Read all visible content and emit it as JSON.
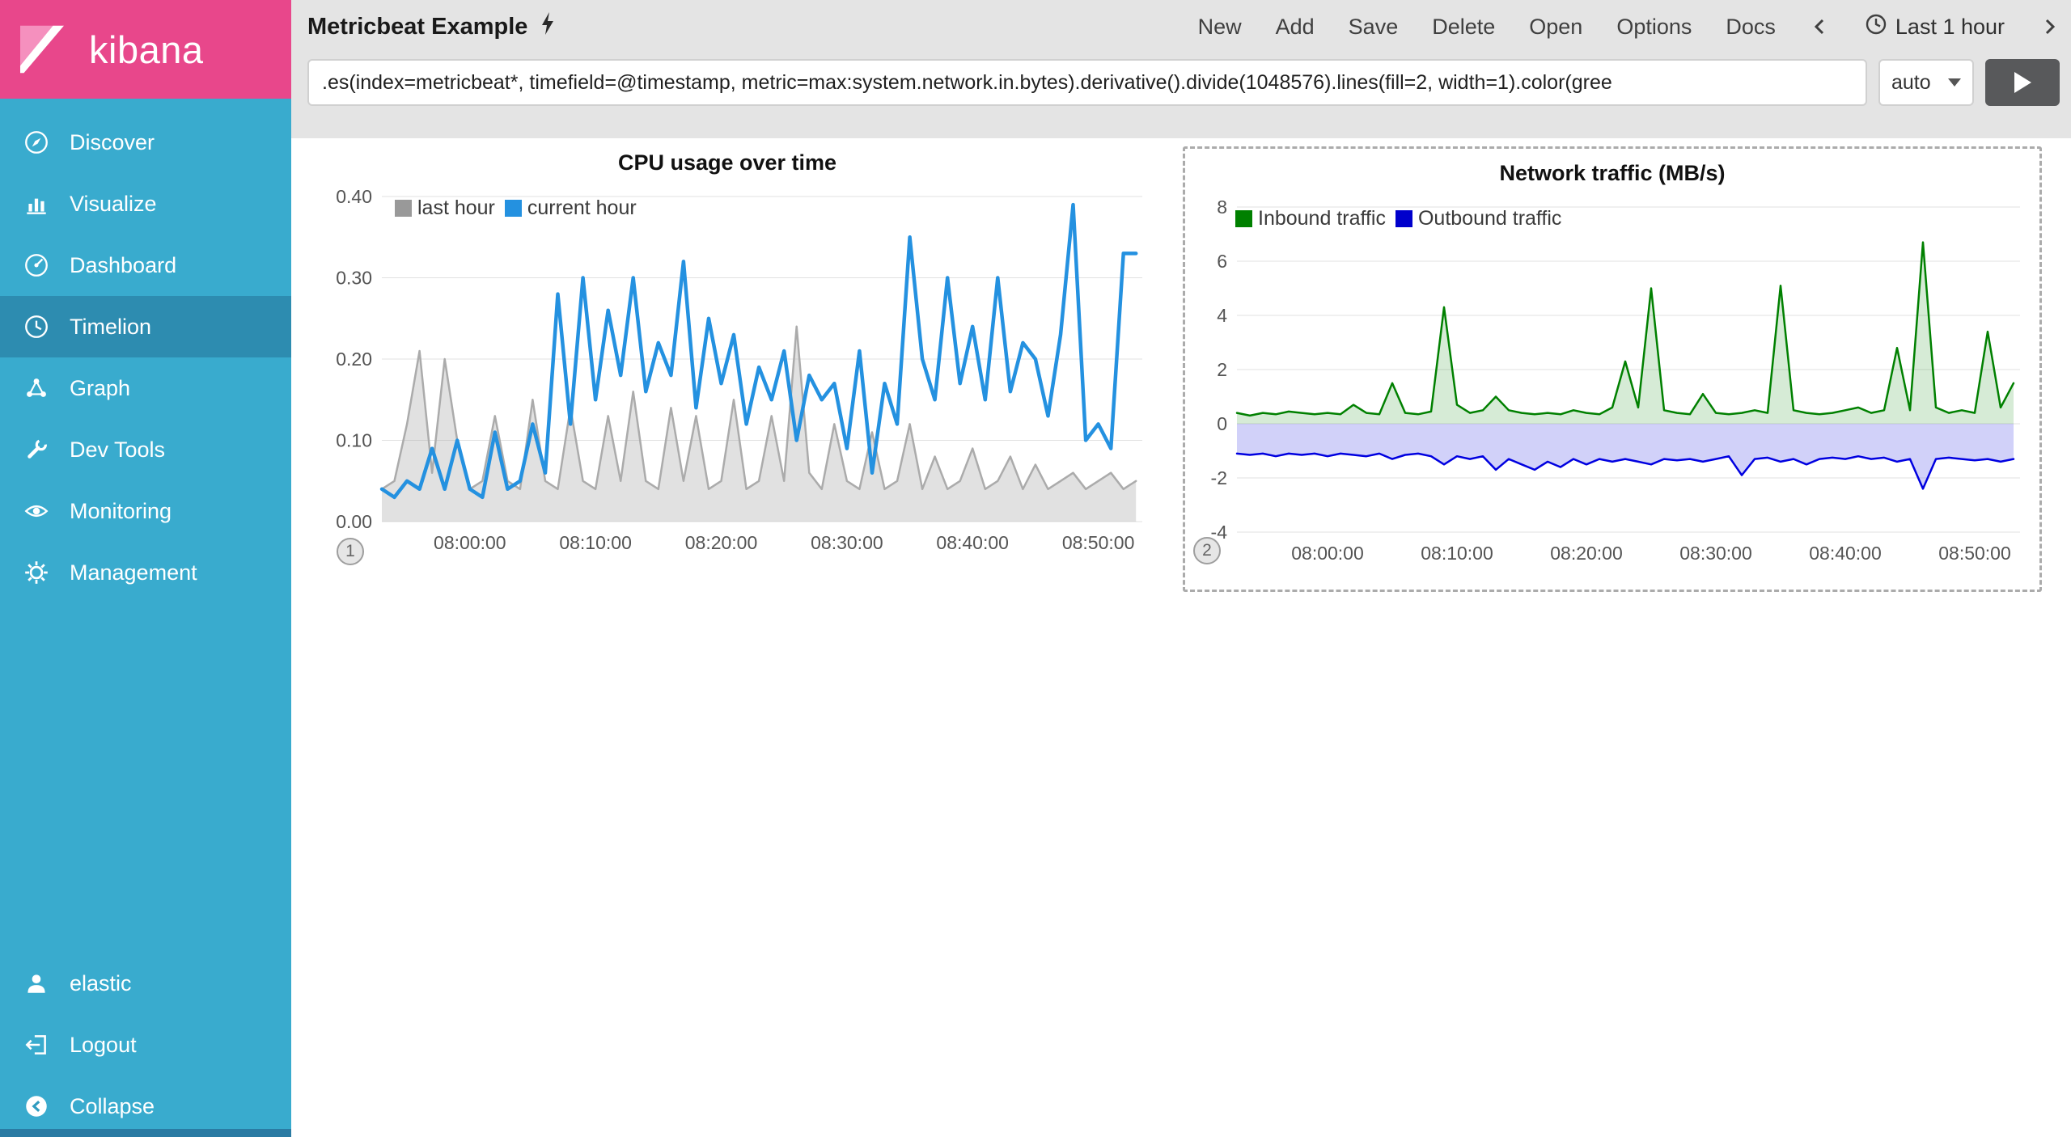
{
  "colors": {
    "sidebar": "#39ABCE",
    "sidebar_active": "#2D8CB0",
    "brand_pink": "#E8478B",
    "chrome_bg": "#E4E4E4",
    "cpu_current_blue": "#2491E0",
    "cpu_last_gray": "#999999",
    "net_inbound_green": "#008000",
    "net_outbound_blue": "#0000CC"
  },
  "sidebar": {
    "logo_text": "kibana",
    "items": [
      {
        "label": "Discover",
        "active": false
      },
      {
        "label": "Visualize",
        "active": false
      },
      {
        "label": "Dashboard",
        "active": false
      },
      {
        "label": "Timelion",
        "active": true
      },
      {
        "label": "Graph",
        "active": false
      },
      {
        "label": "Dev Tools",
        "active": false
      },
      {
        "label": "Monitoring",
        "active": false
      },
      {
        "label": "Management",
        "active": false
      }
    ],
    "footer_items": [
      {
        "label": "elastic"
      },
      {
        "label": "Logout"
      },
      {
        "label": "Collapse"
      }
    ]
  },
  "topbar": {
    "title": "Metricbeat Example",
    "actions": [
      "New",
      "Add",
      "Save",
      "Delete",
      "Open",
      "Options",
      "Docs"
    ],
    "time_range": "Last 1 hour"
  },
  "query": {
    "value": ".es(index=metricbeat*, timefield=@timestamp, metric=max:system.network.in.bytes).derivative().divide(1048576).lines(fill=2, width=1).color(gree",
    "interval": "auto"
  },
  "chart_data": [
    {
      "type": "area",
      "title": "CPU usage over time",
      "badge": "1",
      "legend_position": "top-left",
      "grid": "horizontal",
      "x_domain": [
        -7,
        53.5
      ],
      "y_domain": [
        0,
        0.4
      ],
      "x_start_minute": -7,
      "x_step_minutes": 1,
      "x_ticks": [
        {
          "minute": 0,
          "label": "08:00:00"
        },
        {
          "minute": 10,
          "label": "08:10:00"
        },
        {
          "minute": 20,
          "label": "08:20:00"
        },
        {
          "minute": 30,
          "label": "08:30:00"
        },
        {
          "minute": 40,
          "label": "08:40:00"
        },
        {
          "minute": 50,
          "label": "08:50:00"
        }
      ],
      "y_ticks": [
        {
          "value": 0.0,
          "label": "0.00"
        },
        {
          "value": 0.1,
          "label": "0.10"
        },
        {
          "value": 0.2,
          "label": "0.20"
        },
        {
          "value": 0.3,
          "label": "0.30"
        },
        {
          "value": 0.4,
          "label": "0.40"
        }
      ],
      "series": [
        {
          "name": "last hour",
          "color": "#ABABAB",
          "swatch": "#999999",
          "line_width": 2.5,
          "fill": "rgba(170,170,170,0.35)",
          "values": [
            0.04,
            0.05,
            0.12,
            0.21,
            0.06,
            0.2,
            0.1,
            0.04,
            0.05,
            0.13,
            0.05,
            0.04,
            0.15,
            0.05,
            0.04,
            0.14,
            0.05,
            0.04,
            0.13,
            0.05,
            0.16,
            0.05,
            0.04,
            0.14,
            0.05,
            0.13,
            0.04,
            0.05,
            0.15,
            0.04,
            0.05,
            0.13,
            0.05,
            0.24,
            0.06,
            0.04,
            0.12,
            0.05,
            0.04,
            0.11,
            0.04,
            0.05,
            0.12,
            0.04,
            0.08,
            0.04,
            0.05,
            0.09,
            0.04,
            0.05,
            0.08,
            0.04,
            0.07,
            0.04,
            0.05,
            0.06,
            0.04,
            0.05,
            0.06,
            0.04,
            0.05
          ]
        },
        {
          "name": "current hour",
          "color": "#2491E0",
          "swatch": "#2491E0",
          "line_width": 4.5,
          "fill": null,
          "values": [
            0.04,
            0.03,
            0.05,
            0.04,
            0.09,
            0.04,
            0.1,
            0.04,
            0.03,
            0.11,
            0.04,
            0.05,
            0.12,
            0.06,
            0.28,
            0.12,
            0.3,
            0.15,
            0.26,
            0.18,
            0.3,
            0.16,
            0.22,
            0.18,
            0.32,
            0.14,
            0.25,
            0.17,
            0.23,
            0.12,
            0.19,
            0.15,
            0.21,
            0.1,
            0.18,
            0.15,
            0.17,
            0.09,
            0.21,
            0.06,
            0.17,
            0.12,
            0.35,
            0.2,
            0.15,
            0.3,
            0.17,
            0.24,
            0.15,
            0.3,
            0.16,
            0.22,
            0.2,
            0.13,
            0.23,
            0.39,
            0.1,
            0.12,
            0.09,
            0.33,
            0.33
          ]
        }
      ]
    },
    {
      "type": "area",
      "title": "Network traffic (MB/s)",
      "badge": "2",
      "legend_position": "top-left",
      "grid": "horizontal",
      "x_domain": [
        -7,
        53.5
      ],
      "y_domain": [
        -4,
        8
      ],
      "x_start_minute": -7,
      "x_step_minutes": 1,
      "x_ticks": [
        {
          "minute": 0,
          "label": "08:00:00"
        },
        {
          "minute": 10,
          "label": "08:10:00"
        },
        {
          "minute": 20,
          "label": "08:20:00"
        },
        {
          "minute": 30,
          "label": "08:30:00"
        },
        {
          "minute": 40,
          "label": "08:40:00"
        },
        {
          "minute": 50,
          "label": "08:50:00"
        }
      ],
      "y_ticks": [
        {
          "value": -4,
          "label": "-4"
        },
        {
          "value": -2,
          "label": "-2"
        },
        {
          "value": 0,
          "label": "0"
        },
        {
          "value": 2,
          "label": "2"
        },
        {
          "value": 4,
          "label": "4"
        },
        {
          "value": 6,
          "label": "6"
        },
        {
          "value": 8,
          "label": "8"
        }
      ],
      "series": [
        {
          "name": "Inbound traffic",
          "color": "#008000",
          "swatch": "#008000",
          "line_width": 2.5,
          "fill": "rgba(0,128,0,0.16)",
          "values": [
            0.4,
            0.3,
            0.4,
            0.35,
            0.45,
            0.4,
            0.35,
            0.4,
            0.35,
            0.7,
            0.4,
            0.35,
            1.5,
            0.4,
            0.35,
            0.45,
            4.3,
            0.7,
            0.4,
            0.5,
            1.0,
            0.5,
            0.4,
            0.35,
            0.4,
            0.35,
            0.5,
            0.4,
            0.35,
            0.6,
            2.3,
            0.6,
            5.0,
            0.5,
            0.4,
            0.35,
            1.1,
            0.4,
            0.35,
            0.4,
            0.5,
            0.4,
            5.1,
            0.5,
            0.4,
            0.35,
            0.4,
            0.5,
            0.6,
            0.4,
            0.5,
            2.8,
            0.5,
            6.7,
            0.6,
            0.4,
            0.5,
            0.4,
            3.4,
            0.6,
            1.5
          ]
        },
        {
          "name": "Outbound traffic",
          "color": "#0000E0",
          "swatch": "#0000CC",
          "line_width": 2.5,
          "fill": "rgba(70,70,230,0.25)",
          "values": [
            -1.1,
            -1.15,
            -1.1,
            -1.2,
            -1.1,
            -1.15,
            -1.1,
            -1.2,
            -1.1,
            -1.15,
            -1.2,
            -1.1,
            -1.3,
            -1.15,
            -1.1,
            -1.2,
            -1.5,
            -1.2,
            -1.3,
            -1.2,
            -1.7,
            -1.3,
            -1.5,
            -1.7,
            -1.4,
            -1.6,
            -1.3,
            -1.5,
            -1.3,
            -1.4,
            -1.3,
            -1.4,
            -1.5,
            -1.3,
            -1.35,
            -1.3,
            -1.4,
            -1.3,
            -1.2,
            -1.9,
            -1.3,
            -1.25,
            -1.4,
            -1.3,
            -1.5,
            -1.3,
            -1.25,
            -1.3,
            -1.2,
            -1.3,
            -1.25,
            -1.4,
            -1.3,
            -2.4,
            -1.3,
            -1.25,
            -1.3,
            -1.35,
            -1.3,
            -1.4,
            -1.3
          ]
        }
      ]
    }
  ]
}
